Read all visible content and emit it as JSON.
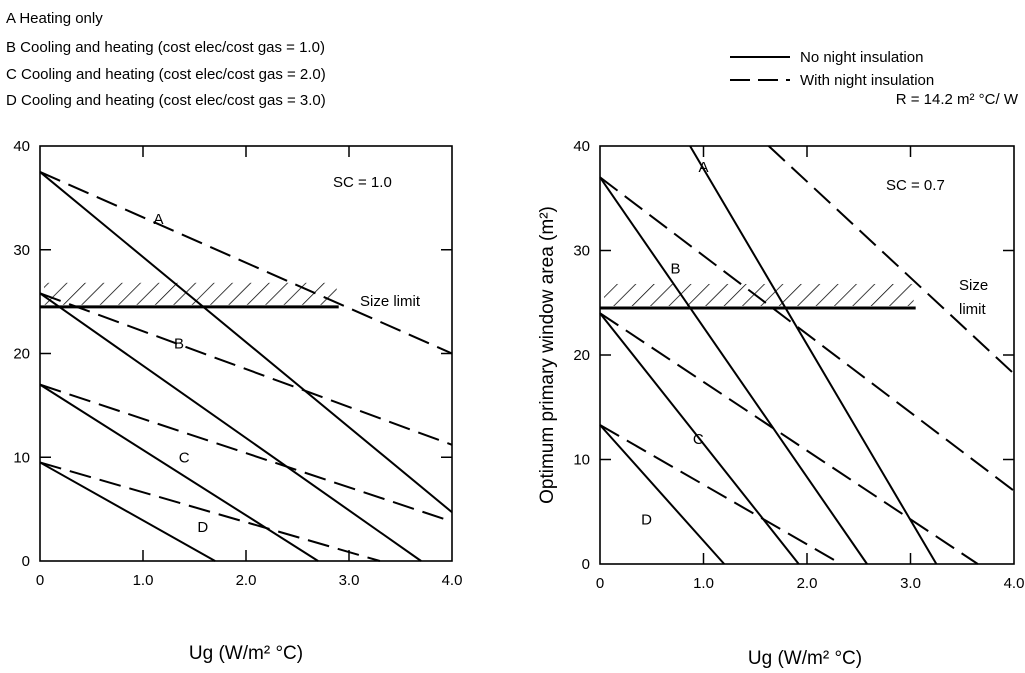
{
  "legend": {
    "case_labels": [
      "A Heating only",
      "B Cooling and heating (cost elec/cost gas = 1.0)",
      "C Cooling and heating (cost elec/cost gas = 2.0)",
      "D Cooling and heating (cost elec/cost gas = 3.0)"
    ],
    "line_styles": [
      {
        "style": "solid",
        "label": "No night insulation"
      },
      {
        "style": "dashed",
        "label": "With night insulation"
      }
    ],
    "r_value": "R = 14.2 m² °C/ W"
  },
  "chart_data": [
    {
      "type": "line",
      "title": "",
      "annotation": "SC = 1.0",
      "xlabel": "Ug (W/m² °C)",
      "ylabel": "",
      "xlim": [
        0,
        4.0
      ],
      "ylim": [
        0,
        40
      ],
      "x_ticks": [
        "0",
        "1.0",
        "2.0",
        "3.0",
        "4.0"
      ],
      "y_ticks": [
        "0",
        "10",
        "20",
        "30",
        "40"
      ],
      "size_limit": {
        "label": "Size limit",
        "y": 24.5,
        "x_range": [
          0,
          2.9
        ]
      },
      "series": [
        {
          "name": "A",
          "style": "solid",
          "x": [
            0,
            4.0
          ],
          "y": [
            37.5,
            4.7
          ]
        },
        {
          "name": "A",
          "style": "dashed",
          "x": [
            0,
            4.0
          ],
          "y": [
            37.5,
            20
          ]
        },
        {
          "name": "B",
          "style": "solid",
          "x": [
            0,
            3.7
          ],
          "y": [
            25.8,
            0
          ]
        },
        {
          "name": "B",
          "style": "dashed",
          "x": [
            0,
            4.0
          ],
          "y": [
            25.8,
            11.2
          ]
        },
        {
          "name": "C",
          "style": "solid",
          "x": [
            0,
            2.7
          ],
          "y": [
            17,
            0
          ]
        },
        {
          "name": "C",
          "style": "dashed",
          "x": [
            0,
            4.0
          ],
          "y": [
            17,
            3.8
          ]
        },
        {
          "name": "D",
          "style": "solid",
          "x": [
            0,
            1.7
          ],
          "y": [
            9.5,
            0
          ]
        },
        {
          "name": "D",
          "style": "dashed",
          "x": [
            0,
            3.3
          ],
          "y": [
            9.5,
            0
          ]
        }
      ],
      "curve_labels": [
        {
          "text": "A",
          "x": 1.15,
          "y": 32.5
        },
        {
          "text": "B",
          "x": 1.35,
          "y": 20.5
        },
        {
          "text": "C",
          "x": 1.4,
          "y": 9.5
        },
        {
          "text": "D",
          "x": 1.58,
          "y": 2.8
        }
      ]
    },
    {
      "type": "line",
      "title": "",
      "annotation": "SC = 0.7",
      "xlabel": "Ug (W/m² °C)",
      "ylabel": "Optimum primary window area (m²)",
      "xlim": [
        0,
        4.0
      ],
      "ylim": [
        0,
        40
      ],
      "x_ticks": [
        "0",
        "1.0",
        "2.0",
        "3.0",
        "4.0"
      ],
      "y_ticks": [
        "0",
        "10",
        "20",
        "30",
        "40"
      ],
      "size_limit": {
        "label": [
          "Size",
          "limit"
        ],
        "y": 24.5,
        "x_range": [
          0,
          3.05
        ]
      },
      "series": [
        {
          "name": "A",
          "style": "solid",
          "x": [
            0.87,
            3.25
          ],
          "y": [
            40,
            0
          ]
        },
        {
          "name": "A",
          "style": "dashed",
          "x": [
            1.63,
            4.0
          ],
          "y": [
            40,
            18.2
          ]
        },
        {
          "name": "B",
          "style": "solid",
          "x": [
            0,
            2.58
          ],
          "y": [
            37,
            0
          ]
        },
        {
          "name": "B",
          "style": "dashed",
          "x": [
            0,
            4.0
          ],
          "y": [
            37,
            7
          ]
        },
        {
          "name": "C",
          "style": "solid",
          "x": [
            0,
            1.92
          ],
          "y": [
            24,
            0
          ]
        },
        {
          "name": "C",
          "style": "dashed",
          "x": [
            0,
            3.65
          ],
          "y": [
            24,
            0
          ]
        },
        {
          "name": "D",
          "style": "solid",
          "x": [
            0,
            1.2
          ],
          "y": [
            13.3,
            0
          ]
        },
        {
          "name": "D",
          "style": "dashed",
          "x": [
            0,
            2.33
          ],
          "y": [
            13.3,
            0
          ]
        }
      ],
      "curve_labels": [
        {
          "text": "A",
          "x": 1.0,
          "y": 37.5
        },
        {
          "text": "B",
          "x": 0.73,
          "y": 27.8
        },
        {
          "text": "C",
          "x": 0.95,
          "y": 11.5
        },
        {
          "text": "D",
          "x": 0.45,
          "y": 3.8
        }
      ]
    }
  ]
}
